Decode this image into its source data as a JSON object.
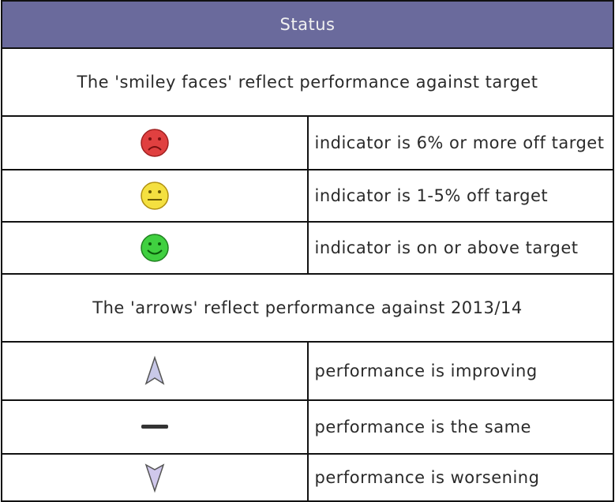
{
  "header": {
    "title": "Status"
  },
  "sections": [
    {
      "heading": "The 'smiley faces' reflect performance against target",
      "rows": [
        {
          "label": "indicator is 6% or more off target"
        },
        {
          "label": "indicator is 1-5% off target"
        },
        {
          "label": "indicator is on or above target"
        }
      ]
    },
    {
      "heading": "The 'arrows' reflect performance against 2013/14",
      "rows": [
        {
          "label": "performance is improving"
        },
        {
          "label": "performance is the same"
        },
        {
          "label": "performance is worsening"
        }
      ]
    }
  ]
}
